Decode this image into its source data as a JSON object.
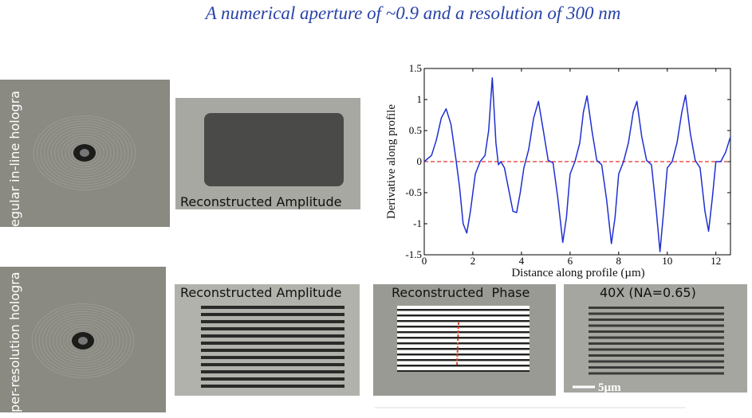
{
  "title": "A numerical aperture of ~0.9 and a resolution of 300 nm",
  "row_labels": [
    "egular in-line hologra",
    "per-resolution hologra"
  ],
  "captions": [
    "Reconstructed Amplitude",
    "Reconstructed Amplitude",
    "Reconstructed  Phase",
    "40X (NA=0.65)"
  ],
  "scale_bar": "5µm",
  "chart_data": {
    "type": "line",
    "xlabel": "Distance along profile (µm)",
    "ylabel": "Derivative along profile",
    "x": [
      0,
      0.3,
      0.5,
      0.7,
      0.9,
      1.1,
      1.3,
      1.45,
      1.6,
      1.75,
      1.9,
      2.1,
      2.3,
      2.5,
      2.65,
      2.8,
      2.95,
      3.05,
      3.15,
      3.3,
      3.5,
      3.65,
      3.8,
      3.95,
      4.1,
      4.3,
      4.5,
      4.7,
      4.9,
      5.1,
      5.3,
      5.5,
      5.7,
      5.85,
      6.0,
      6.2,
      6.4,
      6.55,
      6.7,
      6.9,
      7.1,
      7.3,
      7.5,
      7.7,
      7.85,
      8.0,
      8.2,
      8.4,
      8.6,
      8.75,
      8.95,
      9.15,
      9.35,
      9.55,
      9.7,
      9.85,
      10.0,
      10.2,
      10.4,
      10.6,
      10.75,
      10.95,
      11.15,
      11.35,
      11.55,
      11.7,
      11.85,
      12.0,
      12.2,
      12.4,
      12.6
    ],
    "series": [
      {
        "color": "#1f2fd0",
        "values": [
          0,
          0.1,
          0.35,
          0.7,
          0.85,
          0.6,
          0.05,
          -0.4,
          -1.0,
          -1.15,
          -0.8,
          -0.2,
          0,
          0.1,
          0.5,
          1.35,
          0.3,
          -0.05,
          0.0,
          -0.1,
          -0.5,
          -0.8,
          -0.82,
          -0.5,
          -0.1,
          0.2,
          0.7,
          0.97,
          0.5,
          0.02,
          -0.02,
          -0.6,
          -1.3,
          -0.9,
          -0.2,
          0,
          0.3,
          0.8,
          1.06,
          0.5,
          0.02,
          -0.05,
          -0.6,
          -1.32,
          -0.9,
          -0.2,
          0,
          0.3,
          0.8,
          0.97,
          0.4,
          0.02,
          -0.05,
          -0.8,
          -1.45,
          -0.8,
          -0.1,
          0,
          0.3,
          0.8,
          1.07,
          0.45,
          0.02,
          -0.1,
          -0.8,
          -1.12,
          -0.6,
          0,
          0,
          0.15,
          0.4
        ]
      }
    ],
    "reference_line": {
      "value": 0,
      "color": "#e03030"
    },
    "xlim": [
      0,
      12.6
    ],
    "ylim": [
      -1.5,
      1.5
    ],
    "xticks": [
      0,
      2,
      4,
      6,
      8,
      10,
      12
    ],
    "yticks": [
      -1.5,
      -1,
      -0.5,
      0,
      0.5,
      1,
      1.5
    ]
  }
}
